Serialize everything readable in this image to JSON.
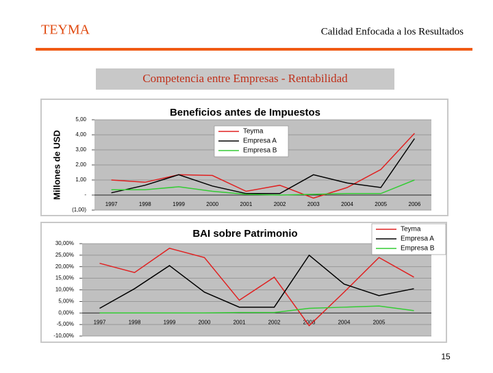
{
  "header": {
    "brand": "TEYMA",
    "title": "Calidad Enfocada a los Resultados"
  },
  "subtitle": "Competencia entre Empresas - Rentabilidad",
  "chart_data": [
    {
      "type": "line",
      "title": "Beneficios antes de Impuestos",
      "y_label": "Millones de USD",
      "categories": [
        "1997",
        "1998",
        "1999",
        "2000",
        "2001",
        "2002",
        "2003",
        "2004",
        "2005",
        "2006"
      ],
      "series": [
        {
          "name": "Teyma",
          "color": "#e02020",
          "values": [
            1.0,
            0.85,
            1.35,
            1.3,
            0.25,
            0.65,
            -0.2,
            0.5,
            1.7,
            4.1
          ]
        },
        {
          "name": "Empresa A",
          "color": "#000000",
          "values": [
            0.15,
            0.65,
            1.35,
            0.6,
            0.1,
            0.1,
            1.35,
            0.8,
            0.5,
            3.75
          ]
        },
        {
          "name": "Empresa B",
          "color": "#33cc33",
          "values": [
            0.35,
            0.35,
            0.55,
            0.25,
            0.05,
            0.0,
            0.05,
            0.1,
            0.1,
            1.0
          ]
        }
      ],
      "ylim": [
        -1,
        5
      ],
      "yticks": [
        {
          "value": 5,
          "label": "5,00"
        },
        {
          "value": 4,
          "label": "4,00"
        },
        {
          "value": 3,
          "label": "3,00"
        },
        {
          "value": 2,
          "label": "2,00"
        },
        {
          "value": 1,
          "label": "1,00"
        },
        {
          "value": 0,
          "label": "-"
        },
        {
          "value": -1,
          "label": "(1,00)"
        }
      ],
      "grid": true,
      "legend": "top"
    },
    {
      "type": "line",
      "title": "BAI sobre Patrimonio",
      "categories": [
        "1997",
        "1998",
        "1999",
        "2000",
        "2001",
        "2002",
        "2003",
        "2004",
        "2005",
        null
      ],
      "series": [
        {
          "name": "Teyma",
          "color": "#e02020",
          "values": [
            21.5,
            17.5,
            28,
            24,
            5.5,
            15.5,
            -5.5,
            9,
            24,
            15.5
          ]
        },
        {
          "name": "Empresa A",
          "color": "#000000",
          "values": [
            2,
            10.5,
            20.5,
            9,
            2.5,
            2.5,
            25,
            12.5,
            7.5,
            10.5
          ]
        },
        {
          "name": "Empresa B",
          "color": "#33cc33",
          "values": [
            0,
            0,
            0,
            0,
            0.2,
            0.2,
            2,
            2.5,
            3,
            1
          ]
        }
      ],
      "ylim": [
        -10,
        30
      ],
      "yticks": [
        {
          "value": 30,
          "label": "30,00%"
        },
        {
          "value": 25,
          "label": "25,00%"
        },
        {
          "value": 20,
          "label": "20,00%"
        },
        {
          "value": 15,
          "label": "15,00%"
        },
        {
          "value": 10,
          "label": "10,00%"
        },
        {
          "value": 5,
          "label": "5,00%"
        },
        {
          "value": 0,
          "label": "0,00%"
        },
        {
          "value": -5,
          "label": "-5,00%"
        },
        {
          "value": -10,
          "label": "-10,00%"
        }
      ],
      "grid": true,
      "legend": "top-right"
    }
  ],
  "page_number": "15"
}
